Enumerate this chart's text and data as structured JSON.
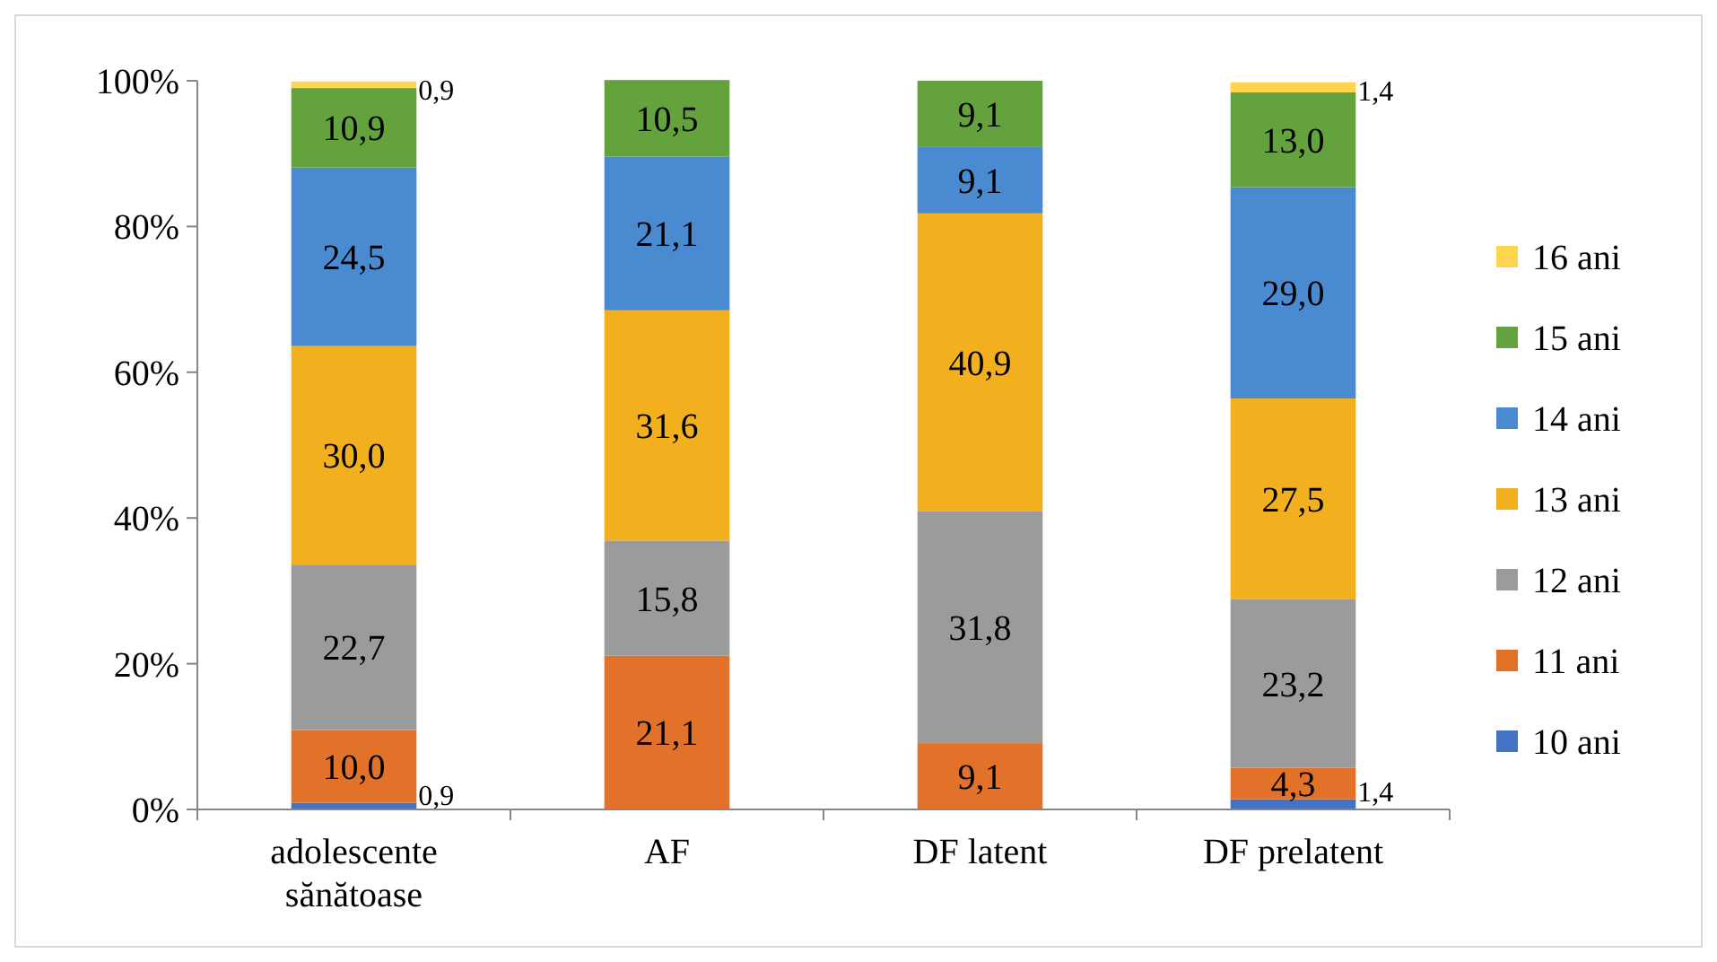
{
  "chart_data": {
    "type": "bar",
    "stacked": true,
    "categories": [
      "adolescente sănătoase",
      "AF",
      "DF latent",
      "DF prelatent"
    ],
    "ylim": [
      0,
      100
    ],
    "yticks": [
      {
        "value": 0,
        "label": "0%"
      },
      {
        "value": 20,
        "label": "20%"
      },
      {
        "value": 40,
        "label": "40%"
      },
      {
        "value": 60,
        "label": "60%"
      },
      {
        "value": 80,
        "label": "80%"
      },
      {
        "value": 100,
        "label": "100%"
      }
    ],
    "grid": false,
    "legend": "right",
    "series": [
      {
        "name": "10 ani",
        "color": "#4472c4",
        "values": [
          0.9,
          0,
          0,
          1.4
        ],
        "value_labels": [
          "0,9",
          null,
          null,
          "1,4"
        ]
      },
      {
        "name": "11 ani",
        "color": "#e2722a",
        "values": [
          10.0,
          21.1,
          9.1,
          4.3
        ],
        "value_labels": [
          "10,0",
          "21,1",
          "9,1",
          "4,3"
        ]
      },
      {
        "name": "12 ani",
        "color": "#9b9b9b",
        "values": [
          22.7,
          15.8,
          31.8,
          23.2
        ],
        "value_labels": [
          "22,7",
          "15,8",
          "31,8",
          "23,2"
        ]
      },
      {
        "name": "13 ani",
        "color": "#f2b01e",
        "values": [
          30.0,
          31.6,
          40.9,
          27.5
        ],
        "value_labels": [
          "30,0",
          "31,6",
          "40,9",
          "27,5"
        ]
      },
      {
        "name": "14 ani",
        "color": "#4a8ad0",
        "values": [
          24.5,
          21.1,
          9.1,
          29.0
        ],
        "value_labels": [
          "24,5",
          "21,1",
          "9,1",
          "29,0"
        ]
      },
      {
        "name": "15 ani",
        "color": "#63a23c",
        "values": [
          10.9,
          10.5,
          9.1,
          13.0
        ],
        "value_labels": [
          "10,9",
          "10,5",
          "9,1",
          "13,0"
        ]
      },
      {
        "name": "16 ani",
        "color": "#ffd54f",
        "values": [
          0.9,
          0,
          0,
          1.4
        ],
        "value_labels": [
          "0,9",
          null,
          null,
          "1,4"
        ]
      }
    ]
  }
}
